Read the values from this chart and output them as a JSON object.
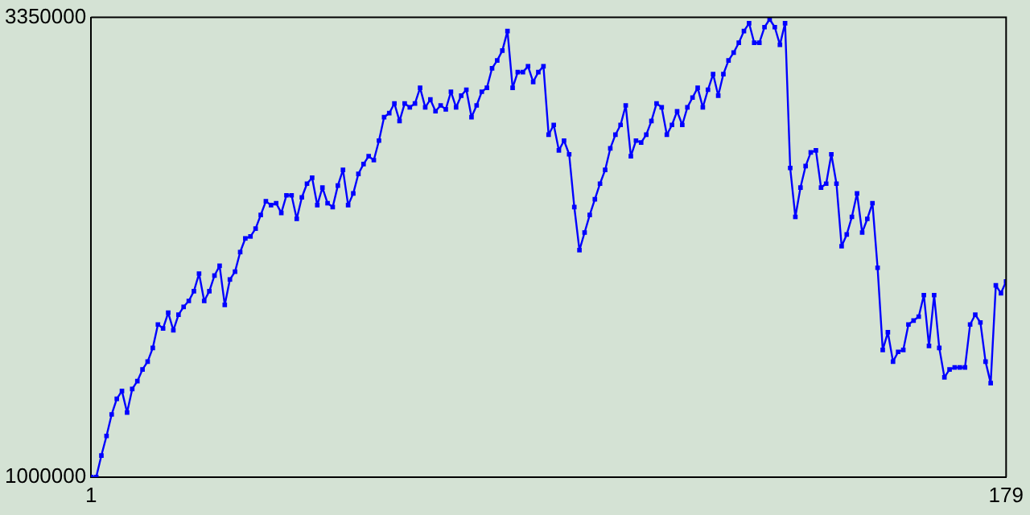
{
  "chart_data": {
    "type": "line",
    "color": "#0000ff",
    "marker": "square",
    "xlim": [
      1,
      179
    ],
    "xticks": [
      1,
      179
    ],
    "ylim": [
      1000000,
      3350000
    ],
    "yticks": [
      1000000,
      3350000
    ],
    "x": [
      1,
      2,
      3,
      4,
      5,
      6,
      7,
      8,
      9,
      10,
      11,
      12,
      13,
      14,
      15,
      16,
      17,
      18,
      19,
      20,
      21,
      22,
      23,
      24,
      25,
      26,
      27,
      28,
      29,
      30,
      31,
      32,
      33,
      34,
      35,
      36,
      37,
      38,
      39,
      40,
      41,
      42,
      43,
      44,
      45,
      46,
      47,
      48,
      49,
      50,
      51,
      52,
      53,
      54,
      55,
      56,
      57,
      58,
      59,
      60,
      61,
      62,
      63,
      64,
      65,
      66,
      67,
      68,
      69,
      70,
      71,
      72,
      73,
      74,
      75,
      76,
      77,
      78,
      79,
      80,
      81,
      82,
      83,
      84,
      85,
      86,
      87,
      88,
      89,
      90,
      91,
      92,
      93,
      94,
      95,
      96,
      97,
      98,
      99,
      100,
      101,
      102,
      103,
      104,
      105,
      106,
      107,
      108,
      109,
      110,
      111,
      112,
      113,
      114,
      115,
      116,
      117,
      118,
      119,
      120,
      121,
      122,
      123,
      124,
      125,
      126,
      127,
      128,
      129,
      130,
      131,
      132,
      133,
      134,
      135,
      136,
      137,
      138,
      139,
      140,
      141,
      142,
      143,
      144,
      145,
      146,
      147,
      148,
      149,
      150,
      151,
      152,
      153,
      154,
      155,
      156,
      157,
      158,
      159,
      160,
      161,
      162,
      163,
      164,
      165,
      166,
      167,
      168,
      169,
      170,
      171,
      172,
      173,
      174,
      175,
      176,
      177,
      178,
      179
    ],
    "values": [
      1000000,
      1000000,
      1110000,
      1210000,
      1320000,
      1400000,
      1440000,
      1330000,
      1450000,
      1490000,
      1550000,
      1590000,
      1660000,
      1780000,
      1760000,
      1840000,
      1750000,
      1830000,
      1870000,
      1900000,
      1950000,
      2040000,
      1900000,
      1950000,
      2030000,
      2080000,
      1880000,
      2010000,
      2050000,
      2150000,
      2220000,
      2230000,
      2270000,
      2340000,
      2410000,
      2390000,
      2400000,
      2350000,
      2440000,
      2440000,
      2320000,
      2430000,
      2500000,
      2530000,
      2390000,
      2480000,
      2400000,
      2380000,
      2490000,
      2570000,
      2390000,
      2450000,
      2550000,
      2600000,
      2640000,
      2620000,
      2720000,
      2840000,
      2860000,
      2910000,
      2820000,
      2910000,
      2890000,
      2910000,
      2990000,
      2890000,
      2930000,
      2870000,
      2900000,
      2880000,
      2970000,
      2890000,
      2950000,
      2980000,
      2840000,
      2900000,
      2970000,
      2990000,
      3090000,
      3130000,
      3180000,
      3280000,
      2990000,
      3070000,
      3070000,
      3100000,
      3020000,
      3070000,
      3100000,
      2750000,
      2800000,
      2670000,
      2720000,
      2650000,
      2380000,
      2160000,
      2250000,
      2340000,
      2420000,
      2500000,
      2570000,
      2680000,
      2750000,
      2800000,
      2900000,
      2640000,
      2720000,
      2710000,
      2750000,
      2820000,
      2910000,
      2890000,
      2750000,
      2800000,
      2870000,
      2800000,
      2890000,
      2940000,
      2990000,
      2890000,
      2980000,
      3060000,
      2950000,
      3060000,
      3130000,
      3170000,
      3220000,
      3280000,
      3320000,
      3220000,
      3220000,
      3300000,
      3340000,
      3300000,
      3210000,
      3320000,
      2580000,
      2330000,
      2480000,
      2590000,
      2660000,
      2670000,
      2480000,
      2500000,
      2650000,
      2500000,
      2180000,
      2240000,
      2330000,
      2450000,
      2250000,
      2320000,
      2400000,
      2070000,
      1650000,
      1740000,
      1590000,
      1640000,
      1650000,
      1780000,
      1800000,
      1820000,
      1930000,
      1670000,
      1930000,
      1660000,
      1510000,
      1550000,
      1560000,
      1560000,
      1560000,
      1780000,
      1830000,
      1790000,
      1590000,
      1480000,
      1980000,
      1940000,
      2000000
    ]
  }
}
